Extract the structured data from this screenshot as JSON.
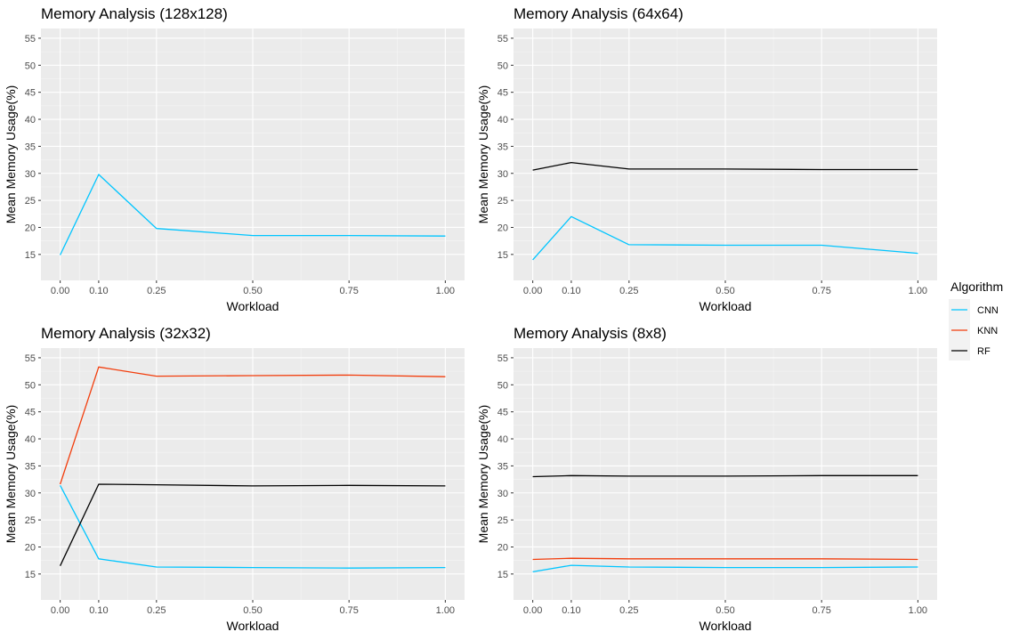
{
  "colors": {
    "panel_bg": "#EBEBEB",
    "grid_major": "#FFFFFF",
    "grid_minor": "#F5F5F5",
    "tick_label": "#4D4D4D",
    "text": "#000000",
    "CNN": "#00C5FF",
    "KNN": "#F23D0C",
    "RF": "#000000"
  },
  "legend": {
    "title": "Algorithm",
    "placement": "right",
    "entries": [
      "CNN",
      "KNN",
      "RF"
    ]
  },
  "chart_data": [
    {
      "type": "line",
      "title": "Memory Analysis (128x128)",
      "xlabel": "Workload",
      "ylabel": "Mean Memory Usage(%)",
      "x": [
        0.0,
        0.1,
        0.25,
        0.5,
        0.75,
        1.0
      ],
      "x_tick_labels": [
        "0.00",
        "0.10",
        "0.25",
        "0.50",
        "0.75",
        "1.00"
      ],
      "y_ticks": [
        15,
        20,
        25,
        30,
        35,
        40,
        45,
        50,
        55
      ],
      "xlim": [
        -0.05,
        1.05
      ],
      "ylim": [
        10.2,
        56.8
      ],
      "grid": true,
      "series": [
        {
          "name": "CNN",
          "values": [
            14.9,
            29.8,
            19.8,
            18.5,
            18.5,
            18.4
          ]
        }
      ]
    },
    {
      "type": "line",
      "title": "Memory Analysis (64x64)",
      "xlabel": "Workload",
      "ylabel": "Mean Memory Usage(%)",
      "x": [
        0.0,
        0.1,
        0.25,
        0.5,
        0.75,
        1.0
      ],
      "x_tick_labels": [
        "0.00",
        "0.10",
        "0.25",
        "0.50",
        "0.75",
        "1.00"
      ],
      "y_ticks": [
        15,
        20,
        25,
        30,
        35,
        40,
        45,
        50,
        55
      ],
      "xlim": [
        -0.05,
        1.05
      ],
      "ylim": [
        10.2,
        56.8
      ],
      "grid": true,
      "series": [
        {
          "name": "CNN",
          "values": [
            14.0,
            22.0,
            16.8,
            16.7,
            16.7,
            15.2
          ]
        },
        {
          "name": "RF",
          "values": [
            30.6,
            32.0,
            30.8,
            30.8,
            30.7,
            30.7
          ]
        }
      ]
    },
    {
      "type": "line",
      "title": "Memory Analysis (32x32)",
      "xlabel": "Workload",
      "ylabel": "Mean Memory Usage(%)",
      "x": [
        0.0,
        0.1,
        0.25,
        0.5,
        0.75,
        1.0
      ],
      "x_tick_labels": [
        "0.00",
        "0.10",
        "0.25",
        "0.50",
        "0.75",
        "1.00"
      ],
      "y_ticks": [
        15,
        20,
        25,
        30,
        35,
        40,
        45,
        50,
        55
      ],
      "xlim": [
        -0.05,
        1.05
      ],
      "ylim": [
        10.2,
        56.8
      ],
      "grid": true,
      "series": [
        {
          "name": "CNN",
          "values": [
            31.4,
            17.8,
            16.3,
            16.2,
            16.1,
            16.2
          ]
        },
        {
          "name": "KNN",
          "values": [
            31.6,
            53.3,
            51.6,
            51.7,
            51.8,
            51.5
          ]
        },
        {
          "name": "RF",
          "values": [
            16.5,
            31.6,
            31.5,
            31.3,
            31.4,
            31.3
          ]
        }
      ]
    },
    {
      "type": "line",
      "title": "Memory Analysis (8x8)",
      "xlabel": "Workload",
      "ylabel": "Mean Memory Usage(%)",
      "x": [
        0.0,
        0.1,
        0.25,
        0.5,
        0.75,
        1.0
      ],
      "x_tick_labels": [
        "0.00",
        "0.10",
        "0.25",
        "0.50",
        "0.75",
        "1.00"
      ],
      "y_ticks": [
        15,
        20,
        25,
        30,
        35,
        40,
        45,
        50,
        55
      ],
      "xlim": [
        -0.05,
        1.05
      ],
      "ylim": [
        10.2,
        56.8
      ],
      "grid": true,
      "series": [
        {
          "name": "CNN",
          "values": [
            15.4,
            16.6,
            16.3,
            16.2,
            16.2,
            16.3
          ]
        },
        {
          "name": "KNN",
          "values": [
            17.7,
            17.9,
            17.8,
            17.8,
            17.8,
            17.7
          ]
        },
        {
          "name": "RF",
          "values": [
            33.0,
            33.2,
            33.1,
            33.1,
            33.2,
            33.2
          ]
        }
      ]
    }
  ]
}
